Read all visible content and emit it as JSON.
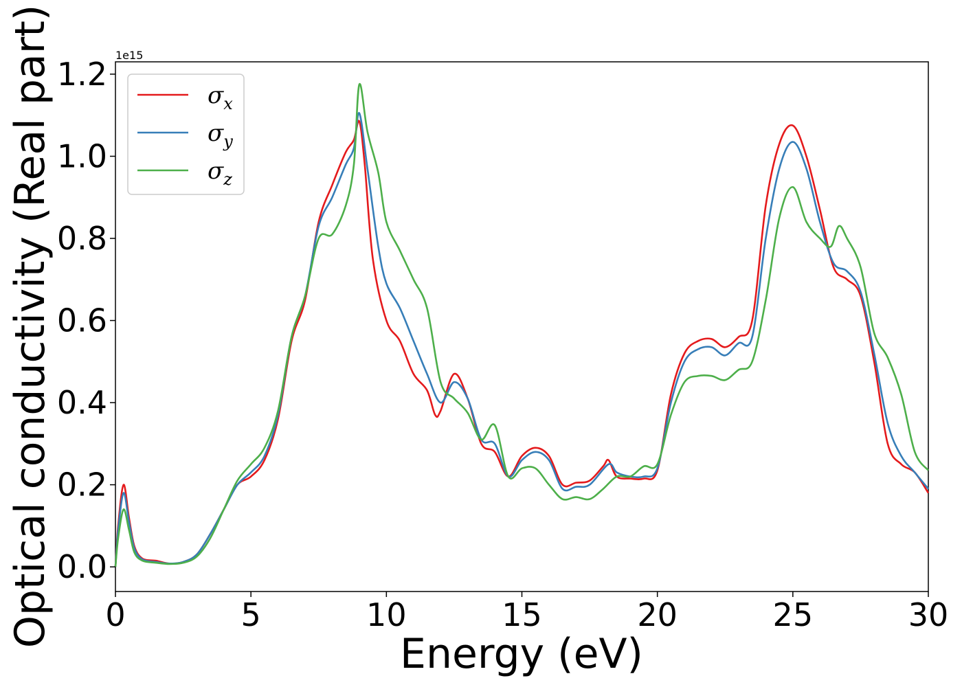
{
  "chart_data": {
    "type": "line",
    "title": "",
    "xlabel": "Energy (eV)",
    "ylabel": "Optical conductivity (Real part)",
    "y_offset_label": "1e15",
    "xlim": [
      0,
      30
    ],
    "ylim": [
      -0.06,
      1.23
    ],
    "xticks": [
      0,
      5,
      10,
      15,
      20,
      25,
      30
    ],
    "yticks": [
      0.0,
      0.2,
      0.4,
      0.6,
      0.8,
      1.0,
      1.2
    ],
    "xtick_labels": [
      "0",
      "5",
      "10",
      "15",
      "20",
      "25",
      "30"
    ],
    "ytick_labels": [
      "0.0",
      "0.2",
      "0.4",
      "0.6",
      "0.8",
      "1.0",
      "1.2"
    ],
    "grid": false,
    "legend": {
      "placement": "top-left",
      "entries": [
        {
          "symbol": "σ",
          "sub": "x"
        },
        {
          "symbol": "σ",
          "sub": "y"
        },
        {
          "symbol": "σ",
          "sub": "z"
        }
      ]
    },
    "series": [
      {
        "color": "#e41a1c",
        "points": [
          [
            0,
            0.0
          ],
          [
            0.1,
            0.1
          ],
          [
            0.3,
            0.2
          ],
          [
            0.5,
            0.12
          ],
          [
            0.7,
            0.05
          ],
          [
            1.0,
            0.02
          ],
          [
            1.5,
            0.015
          ],
          [
            2.0,
            0.008
          ],
          [
            2.5,
            0.012
          ],
          [
            3.0,
            0.03
          ],
          [
            3.5,
            0.08
          ],
          [
            4.0,
            0.14
          ],
          [
            4.5,
            0.2
          ],
          [
            5.0,
            0.22
          ],
          [
            5.5,
            0.26
          ],
          [
            6.0,
            0.36
          ],
          [
            6.5,
            0.55
          ],
          [
            7.0,
            0.65
          ],
          [
            7.5,
            0.84
          ],
          [
            8.0,
            0.93
          ],
          [
            8.5,
            1.01
          ],
          [
            8.8,
            1.04
          ],
          [
            9.0,
            1.085
          ],
          [
            9.2,
            0.98
          ],
          [
            9.5,
            0.75
          ],
          [
            10.0,
            0.6
          ],
          [
            10.5,
            0.55
          ],
          [
            11.0,
            0.47
          ],
          [
            11.5,
            0.43
          ],
          [
            11.8,
            0.37
          ],
          [
            12.0,
            0.38
          ],
          [
            12.5,
            0.47
          ],
          [
            13.0,
            0.41
          ],
          [
            13.5,
            0.3
          ],
          [
            14.0,
            0.28
          ],
          [
            14.5,
            0.22
          ],
          [
            15.0,
            0.27
          ],
          [
            15.5,
            0.29
          ],
          [
            16.0,
            0.27
          ],
          [
            16.5,
            0.2
          ],
          [
            17.0,
            0.205
          ],
          [
            17.5,
            0.21
          ],
          [
            18.0,
            0.245
          ],
          [
            18.2,
            0.26
          ],
          [
            18.5,
            0.22
          ],
          [
            19.0,
            0.215
          ],
          [
            19.5,
            0.215
          ],
          [
            20.0,
            0.235
          ],
          [
            20.5,
            0.42
          ],
          [
            21.0,
            0.52
          ],
          [
            21.5,
            0.55
          ],
          [
            22.0,
            0.555
          ],
          [
            22.5,
            0.535
          ],
          [
            23.0,
            0.56
          ],
          [
            23.5,
            0.6
          ],
          [
            24.0,
            0.88
          ],
          [
            24.5,
            1.03
          ],
          [
            25.0,
            1.075
          ],
          [
            25.5,
            1.0
          ],
          [
            26.0,
            0.87
          ],
          [
            26.5,
            0.73
          ],
          [
            27.0,
            0.7
          ],
          [
            27.5,
            0.66
          ],
          [
            28.0,
            0.5
          ],
          [
            28.5,
            0.3
          ],
          [
            29.0,
            0.25
          ],
          [
            29.5,
            0.23
          ],
          [
            30.0,
            0.18
          ]
        ]
      },
      {
        "color": "#377eb8",
        "points": [
          [
            0,
            0.0
          ],
          [
            0.1,
            0.09
          ],
          [
            0.3,
            0.18
          ],
          [
            0.5,
            0.11
          ],
          [
            0.7,
            0.045
          ],
          [
            1.0,
            0.018
          ],
          [
            1.5,
            0.012
          ],
          [
            2.0,
            0.008
          ],
          [
            2.5,
            0.012
          ],
          [
            3.0,
            0.03
          ],
          [
            3.5,
            0.08
          ],
          [
            4.0,
            0.14
          ],
          [
            4.5,
            0.2
          ],
          [
            5.0,
            0.23
          ],
          [
            5.5,
            0.27
          ],
          [
            6.0,
            0.37
          ],
          [
            6.5,
            0.56
          ],
          [
            7.0,
            0.66
          ],
          [
            7.5,
            0.83
          ],
          [
            8.0,
            0.9
          ],
          [
            8.5,
            0.98
          ],
          [
            8.8,
            1.02
          ],
          [
            9.0,
            1.105
          ],
          [
            9.3,
            0.97
          ],
          [
            9.7,
            0.78
          ],
          [
            10.0,
            0.69
          ],
          [
            10.5,
            0.63
          ],
          [
            11.0,
            0.55
          ],
          [
            11.5,
            0.47
          ],
          [
            12.0,
            0.4
          ],
          [
            12.5,
            0.45
          ],
          [
            13.0,
            0.41
          ],
          [
            13.5,
            0.31
          ],
          [
            14.0,
            0.3
          ],
          [
            14.5,
            0.22
          ],
          [
            15.0,
            0.26
          ],
          [
            15.5,
            0.28
          ],
          [
            16.0,
            0.26
          ],
          [
            16.5,
            0.19
          ],
          [
            17.0,
            0.195
          ],
          [
            17.5,
            0.2
          ],
          [
            18.2,
            0.25
          ],
          [
            18.5,
            0.23
          ],
          [
            19.0,
            0.22
          ],
          [
            19.5,
            0.22
          ],
          [
            20.0,
            0.24
          ],
          [
            20.5,
            0.4
          ],
          [
            21.0,
            0.5
          ],
          [
            21.5,
            0.53
          ],
          [
            22.0,
            0.535
          ],
          [
            22.5,
            0.515
          ],
          [
            23.0,
            0.545
          ],
          [
            23.5,
            0.56
          ],
          [
            24.0,
            0.8
          ],
          [
            24.5,
            0.97
          ],
          [
            25.0,
            1.035
          ],
          [
            25.5,
            0.97
          ],
          [
            26.0,
            0.84
          ],
          [
            26.5,
            0.74
          ],
          [
            27.0,
            0.72
          ],
          [
            27.5,
            0.67
          ],
          [
            28.0,
            0.52
          ],
          [
            28.5,
            0.35
          ],
          [
            29.0,
            0.27
          ],
          [
            29.5,
            0.23
          ],
          [
            30.0,
            0.19
          ]
        ]
      },
      {
        "color": "#4daf4a",
        "points": [
          [
            0,
            0.0
          ],
          [
            0.1,
            0.07
          ],
          [
            0.3,
            0.14
          ],
          [
            0.5,
            0.09
          ],
          [
            0.7,
            0.035
          ],
          [
            1.0,
            0.015
          ],
          [
            1.5,
            0.01
          ],
          [
            2.0,
            0.007
          ],
          [
            2.5,
            0.01
          ],
          [
            3.0,
            0.025
          ],
          [
            3.5,
            0.07
          ],
          [
            4.0,
            0.14
          ],
          [
            4.5,
            0.21
          ],
          [
            5.0,
            0.25
          ],
          [
            5.5,
            0.29
          ],
          [
            6.0,
            0.38
          ],
          [
            6.5,
            0.56
          ],
          [
            7.0,
            0.66
          ],
          [
            7.5,
            0.8
          ],
          [
            8.0,
            0.81
          ],
          [
            8.5,
            0.88
          ],
          [
            8.8,
            0.98
          ],
          [
            9.0,
            1.175
          ],
          [
            9.3,
            1.06
          ],
          [
            9.7,
            0.96
          ],
          [
            10.0,
            0.84
          ],
          [
            10.5,
            0.77
          ],
          [
            11.0,
            0.7
          ],
          [
            11.5,
            0.63
          ],
          [
            12.0,
            0.45
          ],
          [
            12.5,
            0.41
          ],
          [
            13.0,
            0.375
          ],
          [
            13.5,
            0.31
          ],
          [
            14.0,
            0.345
          ],
          [
            14.5,
            0.22
          ],
          [
            15.0,
            0.24
          ],
          [
            15.5,
            0.24
          ],
          [
            16.0,
            0.2
          ],
          [
            16.5,
            0.165
          ],
          [
            17.0,
            0.17
          ],
          [
            17.5,
            0.165
          ],
          [
            18.0,
            0.19
          ],
          [
            18.5,
            0.22
          ],
          [
            19.0,
            0.22
          ],
          [
            19.5,
            0.245
          ],
          [
            20.0,
            0.25
          ],
          [
            20.5,
            0.37
          ],
          [
            21.0,
            0.45
          ],
          [
            21.5,
            0.465
          ],
          [
            22.0,
            0.465
          ],
          [
            22.5,
            0.455
          ],
          [
            23.0,
            0.48
          ],
          [
            23.5,
            0.5
          ],
          [
            24.0,
            0.65
          ],
          [
            24.5,
            0.85
          ],
          [
            25.0,
            0.925
          ],
          [
            25.5,
            0.84
          ],
          [
            26.0,
            0.8
          ],
          [
            26.4,
            0.78
          ],
          [
            26.7,
            0.83
          ],
          [
            27.0,
            0.8
          ],
          [
            27.5,
            0.73
          ],
          [
            28.0,
            0.57
          ],
          [
            28.5,
            0.51
          ],
          [
            29.0,
            0.42
          ],
          [
            29.5,
            0.28
          ],
          [
            30.0,
            0.235
          ]
        ]
      }
    ]
  }
}
